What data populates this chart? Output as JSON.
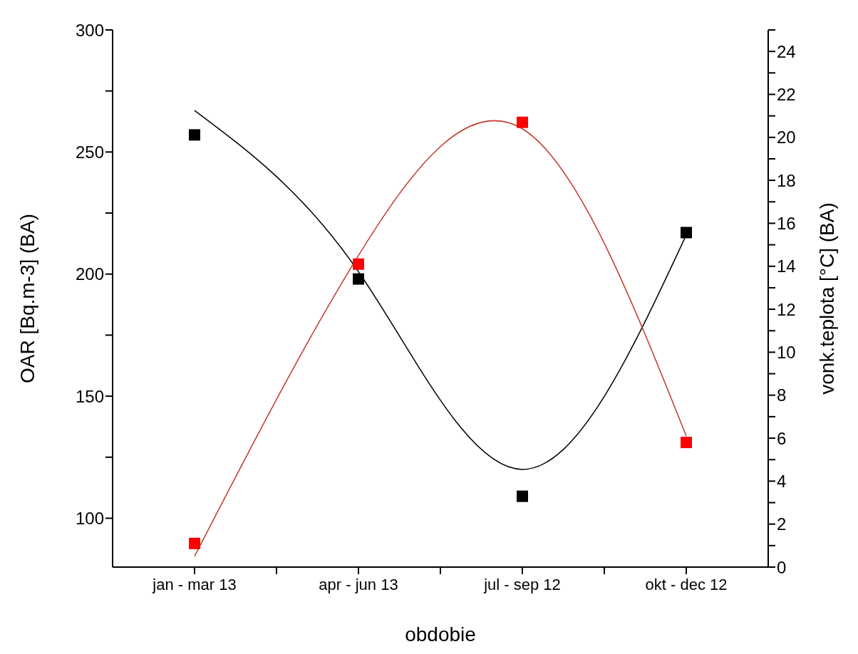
{
  "chart_data": {
    "type": "scatter",
    "xlabel": "obdobie",
    "ylabel": "OAR [Bq.m-3] (BA)",
    "y2label": "vonk.teplota [°C] (BA)",
    "categories": [
      "jan - mar 13",
      "apr - jun 13",
      "jul - sep 12",
      "okt - dec 12"
    ],
    "ylim": [
      80,
      300
    ],
    "yticks": [
      {
        "value": 100,
        "label": "100"
      },
      {
        "value": 125,
        "label": null
      },
      {
        "value": 150,
        "label": "150"
      },
      {
        "value": 175,
        "label": null
      },
      {
        "value": 200,
        "label": "200"
      },
      {
        "value": 225,
        "label": null
      },
      {
        "value": 250,
        "label": "250"
      },
      {
        "value": 275,
        "label": null
      },
      {
        "value": 300,
        "label": "300"
      }
    ],
    "y2lim": [
      0,
      25
    ],
    "y2ticks": [
      0,
      {
        "value": 1,
        "label": null
      },
      2,
      {
        "value": 3,
        "label": null
      },
      4,
      {
        "value": 5,
        "label": null
      },
      6,
      {
        "value": 7,
        "label": null
      },
      8,
      {
        "value": 9,
        "label": null
      },
      10,
      {
        "value": 11,
        "label": null
      },
      12,
      {
        "value": 13,
        "label": null
      },
      14,
      {
        "value": 15,
        "label": null
      },
      16,
      {
        "value": 17,
        "label": null
      },
      18,
      {
        "value": 19,
        "label": null
      },
      20,
      {
        "value": 21,
        "label": null
      },
      22,
      {
        "value": 23,
        "label": null
      },
      24,
      {
        "value": 25,
        "label": null
      }
    ],
    "grid": false,
    "legend": false,
    "series": [
      {
        "type": "scatter",
        "marker": "square",
        "color": "#000000",
        "values": [
          257,
          198,
          109,
          217
        ]
      },
      {
        "type": "scatter",
        "marker": "square",
        "axis": "y2",
        "color": "#ff0000",
        "values": [
          1.1,
          14.1,
          20.7,
          5.8
        ]
      },
      {
        "type": "line",
        "marker": "none",
        "color": "#000000",
        "values": [
          267,
          201,
          120,
          216
        ]
      },
      {
        "type": "line",
        "marker": "none",
        "axis": "y2",
        "color": "#c0392b",
        "values": [
          0.5,
          14.5,
          20.4,
          6.1
        ]
      }
    ]
  }
}
